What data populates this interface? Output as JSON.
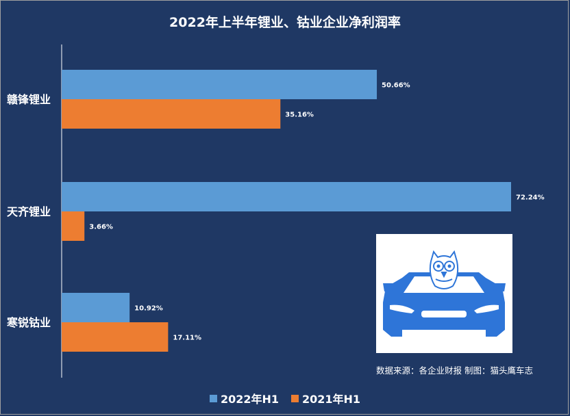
{
  "chart_data": {
    "type": "bar",
    "orientation": "horizontal",
    "title": "2022年上半年锂业、钴业企业净利润率",
    "categories": [
      "赣锋锂业",
      "天齐锂业",
      "寒锐钴业"
    ],
    "series": [
      {
        "name": "2022年H1",
        "color": "#5b9bd5",
        "values": [
          50.66,
          72.24,
          10.92
        ],
        "labels": [
          "50.66%",
          "72.24%",
          "10.92%"
        ]
      },
      {
        "name": "2021年H1",
        "color": "#ed7d31",
        "values": [
          35.16,
          3.66,
          17.11
        ],
        "labels": [
          "35.16%",
          "3.66%",
          "17.11%"
        ]
      }
    ],
    "xlim": [
      0,
      72.24
    ],
    "grid": false,
    "legend_position": "bottom"
  },
  "source_note": "数据来源：各企业财报  制图：猫头鹰车志",
  "logo": {
    "icon": "owl-in-car-icon",
    "color": "#2e75d8"
  },
  "colors": {
    "background": "#1f3864",
    "text": "#ffffff",
    "axis": "#ffffff"
  }
}
